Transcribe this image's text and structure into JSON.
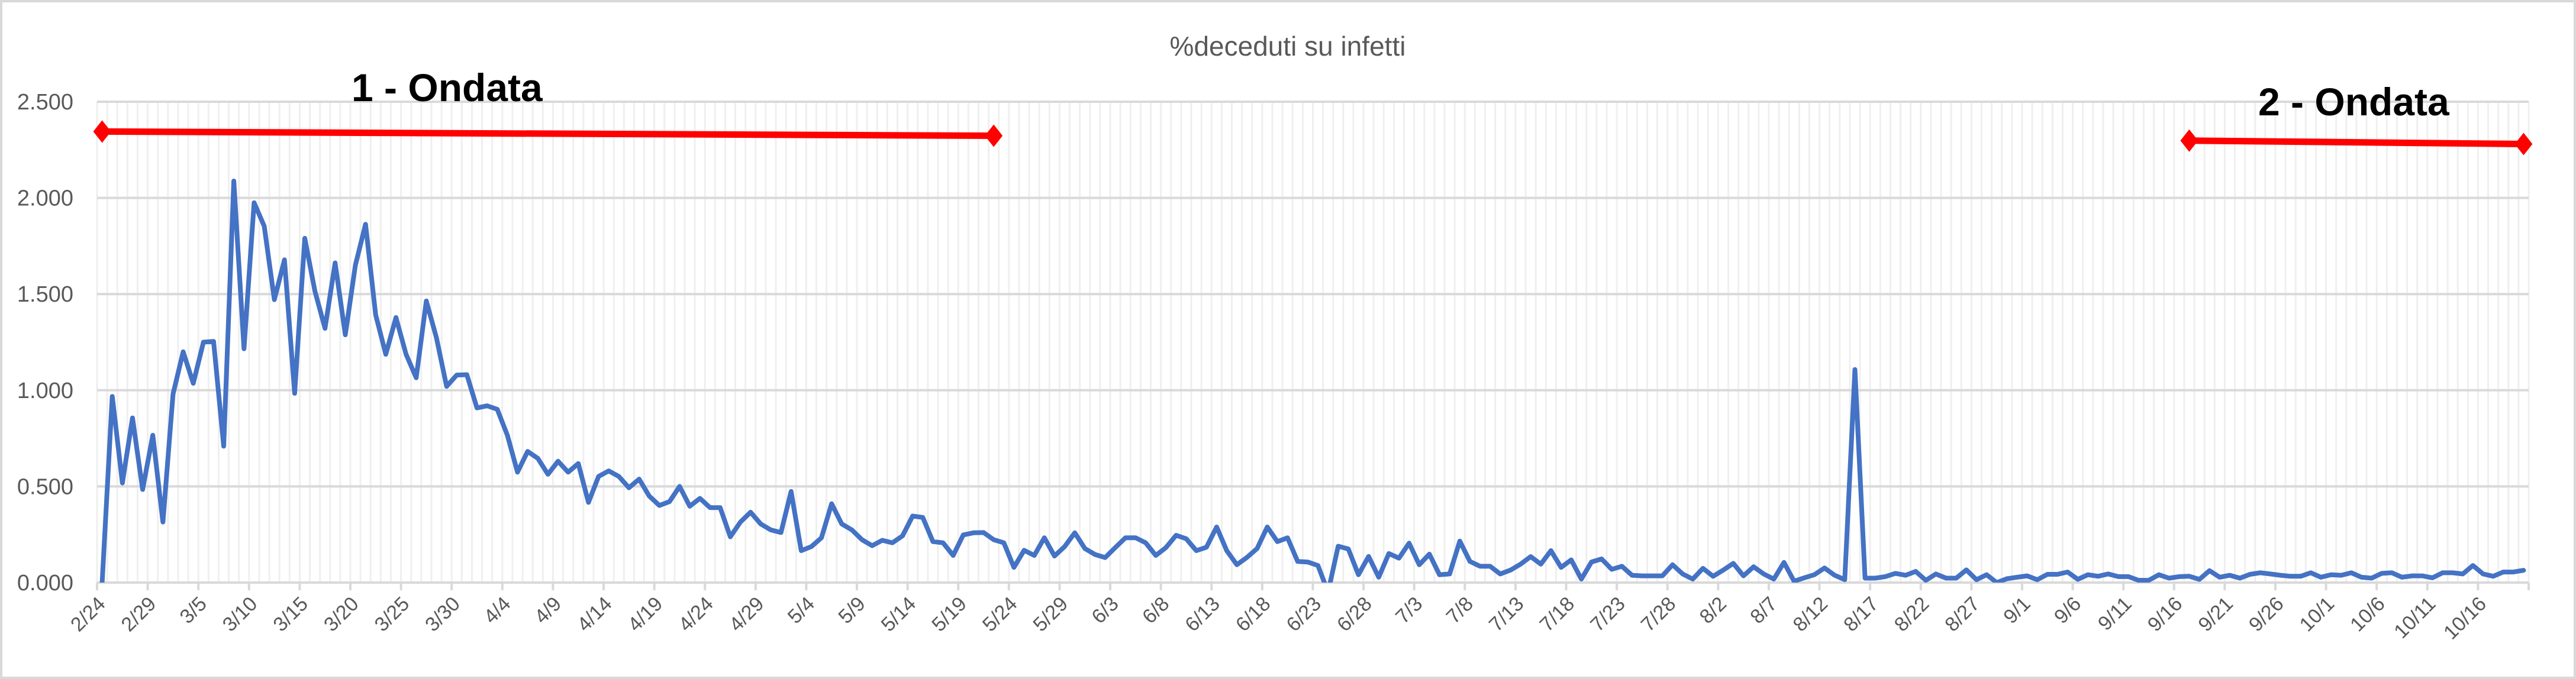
{
  "chart_data": {
    "type": "line",
    "title": "%deceduti su infetti",
    "xlabel": "",
    "ylabel": "",
    "ylim": [
      0,
      2.5
    ],
    "yticks": [
      "0.000",
      "0.500",
      "1.000",
      "1.500",
      "2.000",
      "2.500"
    ],
    "ytick_values": [
      0,
      0.5,
      1,
      1.5,
      2,
      2.5
    ],
    "grid": true,
    "legend": "none",
    "x_tick_labels": [
      "2/24",
      "2/29",
      "3/5",
      "3/10",
      "3/15",
      "3/20",
      "3/25",
      "3/30",
      "4/4",
      "4/9",
      "4/14",
      "4/19",
      "4/24",
      "4/29",
      "5/4",
      "5/9",
      "5/14",
      "5/19",
      "5/24",
      "5/29",
      "6/3",
      "6/8",
      "6/13",
      "6/18",
      "6/23",
      "6/28",
      "7/3",
      "7/8",
      "7/13",
      "7/18",
      "7/23",
      "7/28",
      "8/2",
      "8/7",
      "8/12",
      "8/17",
      "8/22",
      "8/27",
      "9/1",
      "9/6",
      "9/11",
      "9/16",
      "9/21",
      "9/26",
      "10/1",
      "10/6",
      "10/11",
      "10/16"
    ],
    "series": [
      {
        "color": "#4472C4",
        "values": [
          0,
          0.968,
          0.518,
          0.856,
          0.484,
          0.766,
          0.315,
          0.98,
          1.2,
          1.036,
          1.25,
          1.254,
          0.709,
          2.088,
          1.216,
          1.975,
          1.853,
          1.471,
          1.678,
          0.984,
          1.79,
          1.516,
          1.322,
          1.662,
          1.288,
          1.651,
          1.863,
          1.392,
          1.187,
          1.378,
          1.187,
          1.065,
          1.464,
          1.273,
          1.02,
          1.079,
          1.081,
          0.908,
          0.919,
          0.901,
          0.766,
          0.574,
          0.682,
          0.646,
          0.563,
          0.631,
          0.574,
          0.619,
          0.417,
          0.552,
          0.581,
          0.552,
          0.493,
          0.538,
          0.45,
          0.401,
          0.421,
          0.5,
          0.397,
          0.438,
          0.39,
          0.39,
          0.238,
          0.315,
          0.366,
          0.305,
          0.274,
          0.26,
          0.474,
          0.166,
          0.187,
          0.233,
          0.41,
          0.305,
          0.274,
          0.223,
          0.192,
          0.22,
          0.207,
          0.243,
          0.346,
          0.339,
          0.213,
          0.207,
          0.141,
          0.248,
          0.259,
          0.26,
          0.223,
          0.207,
          0.079,
          0.168,
          0.141,
          0.233,
          0.138,
          0.187,
          0.259,
          0.177,
          0.146,
          0.13,
          0.182,
          0.233,
          0.233,
          0.207,
          0.141,
          0.182,
          0.246,
          0.228,
          0.166,
          0.184,
          0.289,
          0.166,
          0.093,
          0.131,
          0.177,
          0.289,
          0.213,
          0.233,
          0.11,
          0.107,
          0.089,
          -0.05,
          0.189,
          0.175,
          0.041,
          0.136,
          0.028,
          0.151,
          0.127,
          0.205,
          0.093,
          0.148,
          0.041,
          0.045,
          0.216,
          0.11,
          0.085,
          0.085,
          0.045,
          0.065,
          0.096,
          0.135,
          0.096,
          0.166,
          0.079,
          0.118,
          0.018,
          0.107,
          0.123,
          0.069,
          0.085,
          0.038,
          0.035,
          0.035,
          0.035,
          0.093,
          0.045,
          0.018,
          0.074,
          0.033,
          0.065,
          0.1,
          0.035,
          0.082,
          0.045,
          0.018,
          0.105,
          0.007,
          0.025,
          0.041,
          0.076,
          0.038,
          0.015,
          1.108,
          0.023,
          0.023,
          0.031,
          0.048,
          0.038,
          0.058,
          0.012,
          0.045,
          0.023,
          0.023,
          0.066,
          0.015,
          0.041,
          0,
          0.02,
          0.028,
          0.035,
          0.015,
          0.043,
          0.043,
          0.055,
          0.017,
          0.041,
          0.033,
          0.045,
          0.031,
          0.031,
          0.012,
          0.012,
          0.041,
          0.023,
          0.031,
          0.033,
          0.017,
          0.062,
          0.028,
          0.038,
          0.023,
          0.043,
          0.051,
          0.045,
          0.038,
          0.033,
          0.033,
          0.051,
          0.028,
          0.041,
          0.038,
          0.051,
          0.028,
          0.023,
          0.048,
          0.051,
          0.028,
          0.035,
          0.035,
          0.025,
          0.051,
          0.051,
          0.045,
          0.089,
          0.045,
          0.033,
          0.055,
          0.055,
          0.064
        ]
      }
    ],
    "annotations": [
      {
        "label": "1 - Ondata",
        "color": "#FF0000",
        "from": {
          "x": "2/24",
          "y": 2.345
        },
        "to": {
          "x": "5/22",
          "y": 2.323
        }
      },
      {
        "label": "2 - Ondata",
        "color": "#FF0000",
        "from": {
          "x": "9/17",
          "y": 2.298
        },
        "to": {
          "x": "10/20",
          "y": 2.28
        }
      }
    ]
  }
}
